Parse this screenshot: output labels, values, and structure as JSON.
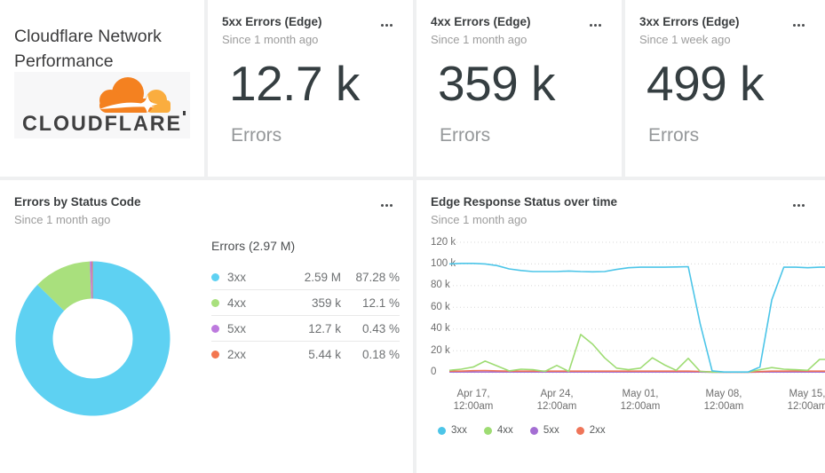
{
  "page": {
    "background": "#eff0f1"
  },
  "title_card": {
    "title": "Cloudflare Network Performance",
    "logo_text": "CLOUDFLARE",
    "logo_colors": {
      "orange": "#f48120",
      "light_orange": "#faad3f",
      "text": "#404041"
    }
  },
  "stat_cards": [
    {
      "title": "5xx Errors (Edge)",
      "subtitle": "Since 1 month ago",
      "value": "12.7 k",
      "unit": "Errors"
    },
    {
      "title": "4xx Errors (Edge)",
      "subtitle": "Since 1 month ago",
      "value": "359 k",
      "unit": "Errors"
    },
    {
      "title": "3xx Errors (Edge)",
      "subtitle": "Since 1 week ago",
      "value": "499 k",
      "unit": "Errors"
    }
  ],
  "chart_data": [
    {
      "type": "pie",
      "donut": true,
      "title": "Errors by Status Code",
      "subtitle": "Since 1 month ago",
      "legend_header": "Errors (2.97 M)",
      "total_label": "2.97 M",
      "slices": [
        {
          "label": "3xx",
          "value": 2590000,
          "value_label": "2.59 M",
          "pct": 87.28,
          "pct_label": "87.28 %",
          "color": "#5ed1f2"
        },
        {
          "label": "4xx",
          "value": 359000,
          "value_label": "359 k",
          "pct": 12.1,
          "pct_label": "12.1 %",
          "color": "#a9e07d"
        },
        {
          "label": "5xx",
          "value": 12700,
          "value_label": "12.7 k",
          "pct": 0.43,
          "pct_label": "0.43 %",
          "color": "#bd7ade"
        },
        {
          "label": "2xx",
          "value": 5440,
          "value_label": "5.44 k",
          "pct": 0.18,
          "pct_label": "0.18 %",
          "color": "#f3764f"
        }
      ]
    },
    {
      "type": "line",
      "title": "Edge Response Status over time",
      "subtitle": "Since 1 month ago",
      "unit_suffix": "k",
      "ylim": [
        0,
        120
      ],
      "grid": "dotted-horizontal",
      "legend_position": "bottom-left",
      "yticks": [
        "120 k",
        "100 k",
        "80 k",
        "60 k",
        "40 k",
        "20 k",
        "0"
      ],
      "xticks": [
        {
          "line1": "Apr 17,",
          "line2": "12:00am"
        },
        {
          "line1": "Apr 24,",
          "line2": "12:00am"
        },
        {
          "line1": "May 01,",
          "line2": "12:00am"
        },
        {
          "line1": "May 08,",
          "line2": "12:00am"
        },
        {
          "line1": "May 15,",
          "line2": "12:00am"
        }
      ],
      "x_days": [
        "Apr 15",
        "Apr 16",
        "Apr 17",
        "Apr 18",
        "Apr 19",
        "Apr 20",
        "Apr 21",
        "Apr 22",
        "Apr 23",
        "Apr 24",
        "Apr 25",
        "Apr 26",
        "Apr 27",
        "Apr 28",
        "Apr 29",
        "Apr 30",
        "May 01",
        "May 02",
        "May 03",
        "May 04",
        "May 05",
        "May 06",
        "May 07",
        "May 08",
        "May 09",
        "May 10",
        "May 11",
        "May 12",
        "May 13",
        "May 14",
        "May 15",
        "May 16"
      ],
      "series": [
        {
          "name": "3xx",
          "color": "#4cc5e8",
          "values": [
            100,
            100.5,
            100.5,
            100,
            98.5,
            95.5,
            94,
            93,
            93,
            93,
            93.5,
            93,
            92.8,
            93,
            95,
            96.5,
            97,
            97,
            97,
            97.3,
            97.5,
            45,
            1.5,
            0.4,
            0.4,
            0.4,
            5,
            67,
            97,
            97,
            96.5,
            97
          ]
        },
        {
          "name": "4xx",
          "color": "#9edc73",
          "values": [
            2,
            3,
            5,
            10.5,
            6,
            1.5,
            3,
            2.5,
            1,
            6.5,
            1,
            35,
            26,
            13.5,
            4,
            2.5,
            4,
            13.5,
            7,
            2,
            13,
            1,
            0.3,
            0.3,
            0.3,
            0.3,
            2.5,
            4.5,
            3,
            2.5,
            2,
            12
          ]
        },
        {
          "name": "5xx",
          "color": "#a46ed3",
          "values": [
            0.4,
            0.4,
            0.4,
            0.4,
            0.4,
            0.4,
            0.4,
            0.4,
            0.4,
            0.4,
            0.4,
            0.4,
            0.4,
            0.4,
            0.4,
            0.4,
            0.4,
            0.4,
            0.4,
            0.4,
            0.4,
            0.4,
            0.2,
            0.2,
            0.2,
            0.2,
            0.4,
            0.4,
            0.4,
            0.4,
            0.4,
            0.4
          ]
        },
        {
          "name": "2xx",
          "color": "#ef7559",
          "values": [
            1.2,
            1.2,
            1.6,
            1.8,
            1.5,
            1.2,
            1.2,
            1.2,
            1.2,
            1.2,
            1.2,
            1.2,
            1.2,
            1.2,
            1.2,
            1.2,
            1.2,
            1.2,
            1.2,
            1.2,
            1.2,
            1,
            0.5,
            0.3,
            0.3,
            0.3,
            0.8,
            1.2,
            1.2,
            1.5,
            1.2,
            1.2
          ]
        }
      ]
    }
  ]
}
